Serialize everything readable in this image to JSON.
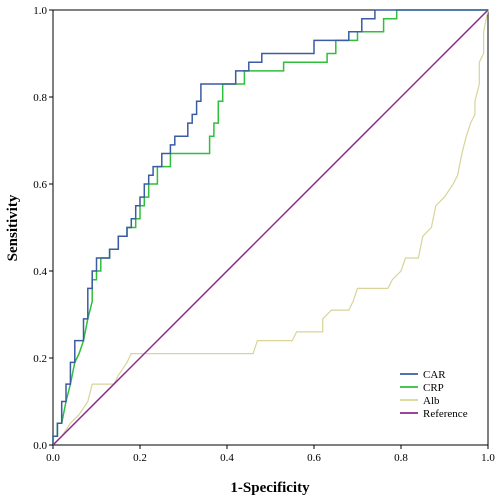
{
  "chart_data": {
    "type": "line",
    "xlabel": "1-Specificity",
    "ylabel": "Sensitivity",
    "xlim": [
      0,
      1
    ],
    "ylim": [
      0,
      1
    ],
    "x_ticks": [
      "0.0",
      "0.2",
      "0.4",
      "0.6",
      "0.8",
      "1.0"
    ],
    "y_ticks": [
      "0.0",
      "0.2",
      "0.4",
      "0.6",
      "0.8",
      "1.0"
    ],
    "grid": false,
    "legend_position": "bottom-right",
    "series": [
      {
        "name": "CAR",
        "color": "#3b5ba5",
        "points": [
          [
            0,
            0
          ],
          [
            0,
            0.02
          ],
          [
            0.01,
            0.02
          ],
          [
            0.01,
            0.05
          ],
          [
            0.02,
            0.05
          ],
          [
            0.02,
            0.1
          ],
          [
            0.03,
            0.1
          ],
          [
            0.03,
            0.14
          ],
          [
            0.04,
            0.14
          ],
          [
            0.04,
            0.19
          ],
          [
            0.05,
            0.19
          ],
          [
            0.05,
            0.24
          ],
          [
            0.07,
            0.24
          ],
          [
            0.07,
            0.29
          ],
          [
            0.08,
            0.29
          ],
          [
            0.08,
            0.36
          ],
          [
            0.09,
            0.36
          ],
          [
            0.09,
            0.4
          ],
          [
            0.1,
            0.4
          ],
          [
            0.1,
            0.43
          ],
          [
            0.13,
            0.43
          ],
          [
            0.13,
            0.45
          ],
          [
            0.15,
            0.45
          ],
          [
            0.15,
            0.48
          ],
          [
            0.17,
            0.48
          ],
          [
            0.17,
            0.5
          ],
          [
            0.18,
            0.5
          ],
          [
            0.18,
            0.52
          ],
          [
            0.19,
            0.52
          ],
          [
            0.19,
            0.55
          ],
          [
            0.2,
            0.55
          ],
          [
            0.2,
            0.57
          ],
          [
            0.21,
            0.57
          ],
          [
            0.21,
            0.6
          ],
          [
            0.22,
            0.6
          ],
          [
            0.22,
            0.62
          ],
          [
            0.23,
            0.62
          ],
          [
            0.23,
            0.64
          ],
          [
            0.25,
            0.64
          ],
          [
            0.25,
            0.67
          ],
          [
            0.27,
            0.67
          ],
          [
            0.27,
            0.69
          ],
          [
            0.28,
            0.69
          ],
          [
            0.28,
            0.71
          ],
          [
            0.31,
            0.71
          ],
          [
            0.31,
            0.74
          ],
          [
            0.32,
            0.74
          ],
          [
            0.32,
            0.76
          ],
          [
            0.33,
            0.76
          ],
          [
            0.33,
            0.79
          ],
          [
            0.34,
            0.79
          ],
          [
            0.34,
            0.83
          ],
          [
            0.42,
            0.83
          ],
          [
            0.42,
            0.86
          ],
          [
            0.45,
            0.86
          ],
          [
            0.45,
            0.88
          ],
          [
            0.48,
            0.88
          ],
          [
            0.48,
            0.9
          ],
          [
            0.6,
            0.9
          ],
          [
            0.6,
            0.93
          ],
          [
            0.68,
            0.93
          ],
          [
            0.68,
            0.95
          ],
          [
            0.71,
            0.95
          ],
          [
            0.71,
            0.98
          ],
          [
            0.74,
            0.98
          ],
          [
            0.74,
            1
          ],
          [
            1,
            1
          ]
        ]
      },
      {
        "name": "CRP",
        "color": "#2fbf3a",
        "points": [
          [
            0,
            0
          ],
          [
            0,
            0.02
          ],
          [
            0.01,
            0.02
          ],
          [
            0.01,
            0.05
          ],
          [
            0.02,
            0.05
          ],
          [
            0.03,
            0.1
          ],
          [
            0.04,
            0.14
          ],
          [
            0.05,
            0.19
          ],
          [
            0.06,
            0.21
          ],
          [
            0.07,
            0.24
          ],
          [
            0.08,
            0.29
          ],
          [
            0.09,
            0.33
          ],
          [
            0.09,
            0.38
          ],
          [
            0.1,
            0.38
          ],
          [
            0.1,
            0.4
          ],
          [
            0.11,
            0.4
          ],
          [
            0.11,
            0.43
          ],
          [
            0.13,
            0.43
          ],
          [
            0.13,
            0.45
          ],
          [
            0.15,
            0.45
          ],
          [
            0.15,
            0.48
          ],
          [
            0.17,
            0.48
          ],
          [
            0.17,
            0.5
          ],
          [
            0.19,
            0.5
          ],
          [
            0.19,
            0.52
          ],
          [
            0.2,
            0.52
          ],
          [
            0.2,
            0.55
          ],
          [
            0.21,
            0.55
          ],
          [
            0.21,
            0.57
          ],
          [
            0.22,
            0.57
          ],
          [
            0.22,
            0.6
          ],
          [
            0.24,
            0.6
          ],
          [
            0.24,
            0.64
          ],
          [
            0.27,
            0.64
          ],
          [
            0.27,
            0.67
          ],
          [
            0.36,
            0.67
          ],
          [
            0.36,
            0.71
          ],
          [
            0.37,
            0.71
          ],
          [
            0.37,
            0.74
          ],
          [
            0.38,
            0.74
          ],
          [
            0.38,
            0.79
          ],
          [
            0.39,
            0.79
          ],
          [
            0.39,
            0.83
          ],
          [
            0.44,
            0.83
          ],
          [
            0.44,
            0.86
          ],
          [
            0.53,
            0.86
          ],
          [
            0.53,
            0.88
          ],
          [
            0.63,
            0.88
          ],
          [
            0.63,
            0.9
          ],
          [
            0.65,
            0.9
          ],
          [
            0.65,
            0.93
          ],
          [
            0.7,
            0.93
          ],
          [
            0.7,
            0.95
          ],
          [
            0.76,
            0.95
          ],
          [
            0.76,
            0.98
          ],
          [
            0.79,
            0.98
          ],
          [
            0.79,
            1
          ],
          [
            1,
            1
          ]
        ]
      },
      {
        "name": "Alb",
        "color": "#d8d49a",
        "points": [
          [
            0,
            0
          ],
          [
            0.02,
            0.02
          ],
          [
            0.04,
            0.05
          ],
          [
            0.06,
            0.07
          ],
          [
            0.08,
            0.1
          ],
          [
            0.09,
            0.14
          ],
          [
            0.14,
            0.14
          ],
          [
            0.15,
            0.16
          ],
          [
            0.17,
            0.19
          ],
          [
            0.18,
            0.21
          ],
          [
            0.46,
            0.21
          ],
          [
            0.47,
            0.24
          ],
          [
            0.55,
            0.24
          ],
          [
            0.56,
            0.26
          ],
          [
            0.62,
            0.26
          ],
          [
            0.62,
            0.29
          ],
          [
            0.64,
            0.31
          ],
          [
            0.68,
            0.31
          ],
          [
            0.69,
            0.33
          ],
          [
            0.7,
            0.36
          ],
          [
            0.77,
            0.36
          ],
          [
            0.78,
            0.38
          ],
          [
            0.8,
            0.4
          ],
          [
            0.81,
            0.43
          ],
          [
            0.84,
            0.43
          ],
          [
            0.85,
            0.48
          ],
          [
            0.87,
            0.5
          ],
          [
            0.88,
            0.55
          ],
          [
            0.9,
            0.57
          ],
          [
            0.92,
            0.6
          ],
          [
            0.93,
            0.62
          ],
          [
            0.94,
            0.67
          ],
          [
            0.95,
            0.71
          ],
          [
            0.96,
            0.74
          ],
          [
            0.97,
            0.76
          ],
          [
            0.97,
            0.79
          ],
          [
            0.98,
            0.83
          ],
          [
            0.98,
            0.88
          ],
          [
            0.99,
            0.9
          ],
          [
            0.99,
            0.95
          ],
          [
            1,
            1
          ]
        ]
      },
      {
        "name": "Reference",
        "color": "#8b2a8b",
        "points": [
          [
            0,
            0
          ],
          [
            1,
            1
          ]
        ]
      }
    ]
  }
}
